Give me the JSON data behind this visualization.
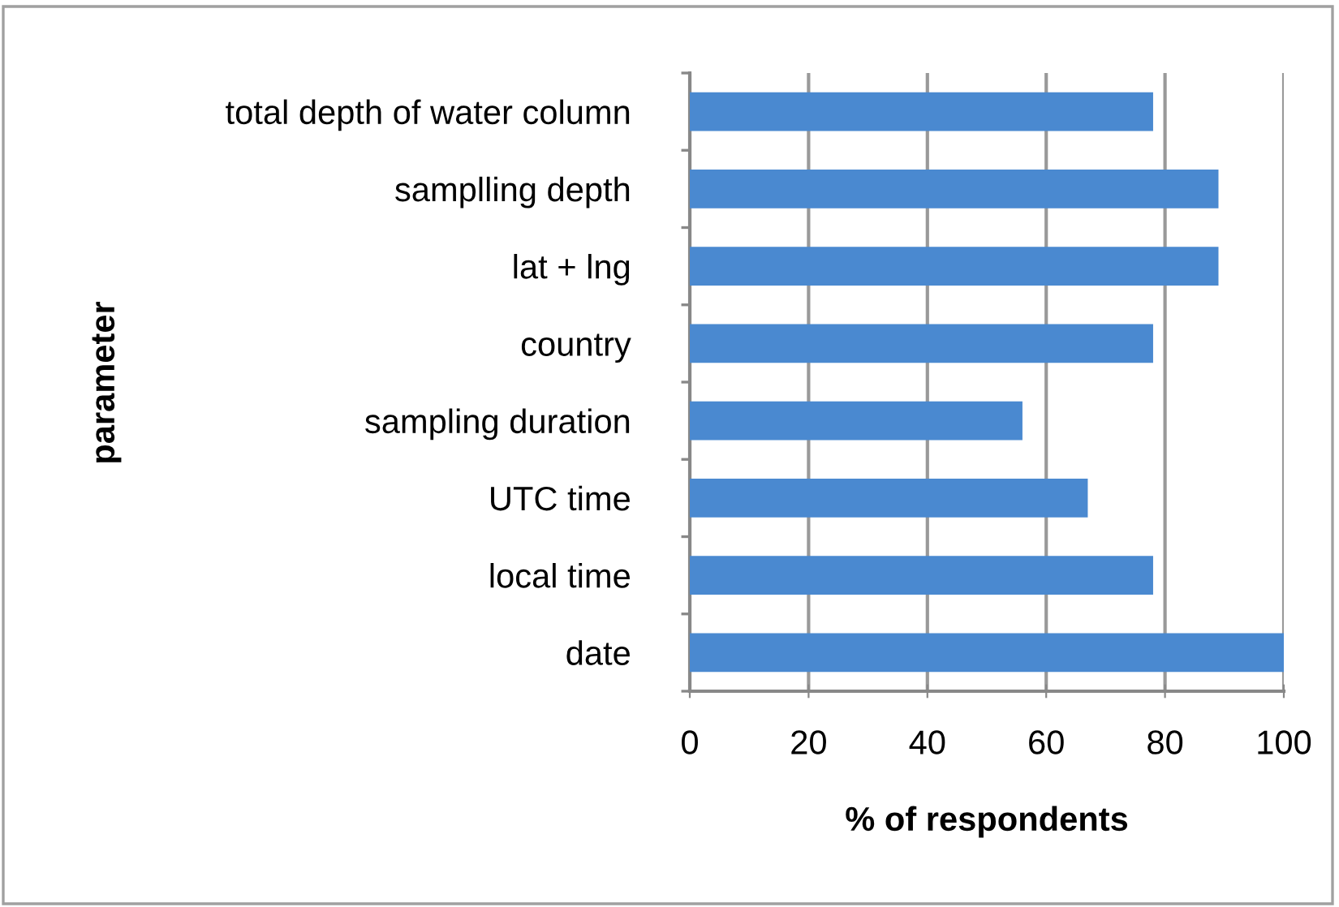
{
  "chart_data": {
    "type": "bar",
    "orientation": "horizontal",
    "xlabel": "% of respondents",
    "ylabel": "parameter",
    "categories": [
      "total depth of water column",
      "samplling depth",
      "lat + lng",
      "country",
      "sampling duration",
      "UTC time",
      "local time",
      "date"
    ],
    "values": [
      78,
      89,
      89,
      78,
      56,
      67,
      78,
      100
    ],
    "color": "#4a89d0",
    "xlim": [
      0,
      100
    ],
    "xticks": [
      0,
      20,
      40,
      60,
      80,
      100
    ],
    "grid": "x",
    "legend": false
  }
}
